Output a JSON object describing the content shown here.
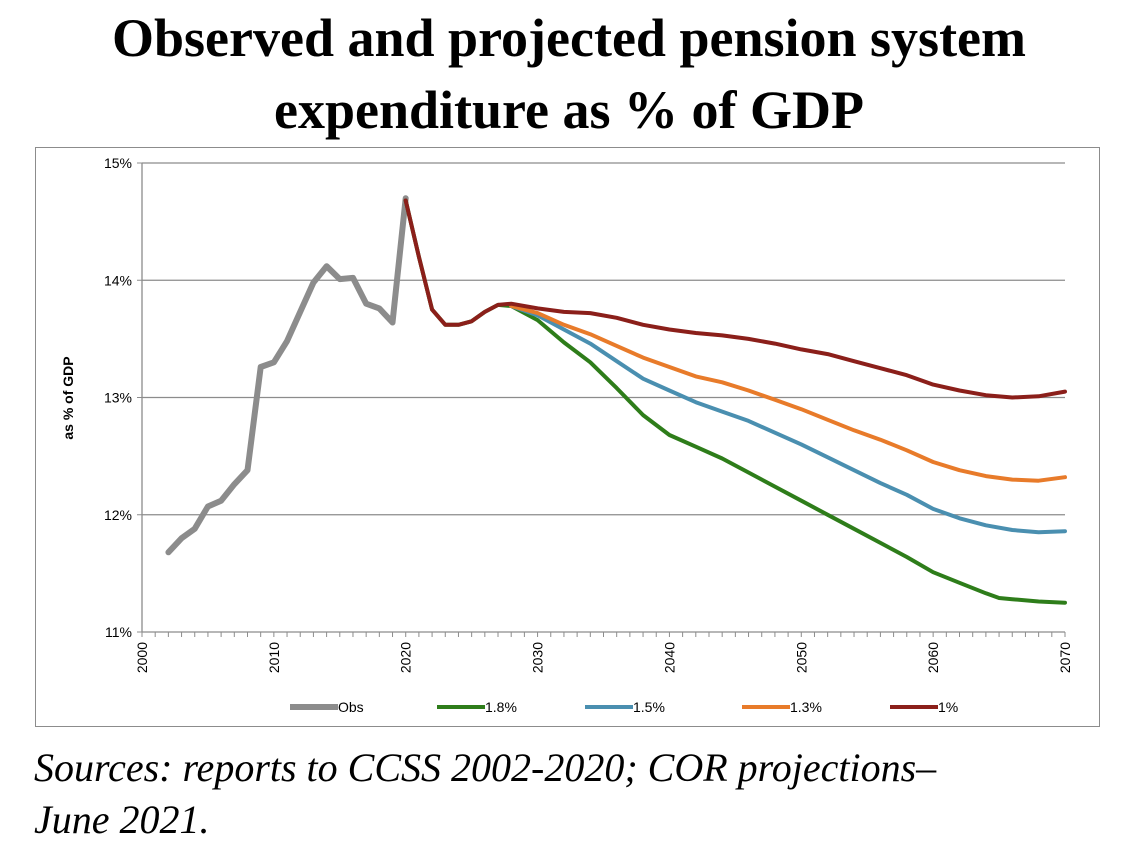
{
  "title_line1": "Observed and projected pension system",
  "title_line2": "expenditure as % of GDP",
  "source_line1": "Sources: reports to CCSS 2002-2020; COR projections–",
  "source_line2": "June 2021.",
  "chart_data": {
    "type": "line",
    "title": "Observed and projected pension system expenditure as % of GDP",
    "xlabel": "",
    "ylabel": "as % of GDP",
    "xlim": [
      2000,
      2070
    ],
    "ylim": [
      11,
      15
    ],
    "x_ticks": [
      "2000",
      "2010",
      "2020",
      "2030",
      "2040",
      "2050",
      "2060",
      "2070"
    ],
    "y_ticks": [
      "11%",
      "12%",
      "13%",
      "14%",
      "15%"
    ],
    "grid": "horizontal",
    "legend_position": "bottom",
    "series": [
      {
        "name": "Obs",
        "color": "#8c8c8c",
        "points": [
          [
            2002,
            11.68
          ],
          [
            2003,
            11.8
          ],
          [
            2004,
            11.88
          ],
          [
            2005,
            12.07
          ],
          [
            2006,
            12.12
          ],
          [
            2007,
            12.26
          ],
          [
            2008,
            12.38
          ],
          [
            2009,
            13.26
          ],
          [
            2010,
            13.3
          ],
          [
            2011,
            13.48
          ],
          [
            2012,
            13.73
          ],
          [
            2013,
            13.98
          ],
          [
            2014,
            14.12
          ],
          [
            2015,
            14.01
          ],
          [
            2016,
            14.02
          ],
          [
            2017,
            13.8
          ],
          [
            2018,
            13.76
          ],
          [
            2019,
            13.64
          ],
          [
            2020,
            14.7
          ]
        ]
      },
      {
        "name": "1.8%",
        "color": "#2e7d1a",
        "points": [
          [
            2020,
            14.68
          ],
          [
            2021,
            14.2
          ],
          [
            2022,
            13.75
          ],
          [
            2023,
            13.62
          ],
          [
            2024,
            13.62
          ],
          [
            2025,
            13.65
          ],
          [
            2026,
            13.73
          ],
          [
            2027,
            13.79
          ],
          [
            2028,
            13.78
          ],
          [
            2030,
            13.66
          ],
          [
            2032,
            13.47
          ],
          [
            2034,
            13.3
          ],
          [
            2036,
            13.08
          ],
          [
            2038,
            12.85
          ],
          [
            2040,
            12.68
          ],
          [
            2042,
            12.58
          ],
          [
            2044,
            12.48
          ],
          [
            2046,
            12.36
          ],
          [
            2048,
            12.24
          ],
          [
            2050,
            12.12
          ],
          [
            2052,
            12.0
          ],
          [
            2054,
            11.88
          ],
          [
            2056,
            11.76
          ],
          [
            2058,
            11.64
          ],
          [
            2060,
            11.51
          ],
          [
            2062,
            11.42
          ],
          [
            2064,
            11.33
          ],
          [
            2065,
            11.29
          ],
          [
            2066,
            11.28
          ],
          [
            2068,
            11.26
          ],
          [
            2070,
            11.25
          ]
        ]
      },
      {
        "name": "1.5%",
        "color": "#4a8fb0",
        "points": [
          [
            2028,
            13.78
          ],
          [
            2030,
            13.7
          ],
          [
            2032,
            13.58
          ],
          [
            2034,
            13.46
          ],
          [
            2036,
            13.31
          ],
          [
            2038,
            13.16
          ],
          [
            2040,
            13.06
          ],
          [
            2042,
            12.96
          ],
          [
            2044,
            12.88
          ],
          [
            2046,
            12.8
          ],
          [
            2048,
            12.7
          ],
          [
            2050,
            12.6
          ],
          [
            2052,
            12.49
          ],
          [
            2054,
            12.38
          ],
          [
            2056,
            12.27
          ],
          [
            2058,
            12.17
          ],
          [
            2060,
            12.05
          ],
          [
            2062,
            11.97
          ],
          [
            2064,
            11.91
          ],
          [
            2066,
            11.87
          ],
          [
            2068,
            11.85
          ],
          [
            2070,
            11.86
          ]
        ]
      },
      {
        "name": "1.3%",
        "color": "#e87b2a",
        "points": [
          [
            2028,
            13.78
          ],
          [
            2030,
            13.72
          ],
          [
            2032,
            13.62
          ],
          [
            2034,
            13.54
          ],
          [
            2036,
            13.44
          ],
          [
            2038,
            13.34
          ],
          [
            2040,
            13.26
          ],
          [
            2042,
            13.18
          ],
          [
            2044,
            13.13
          ],
          [
            2046,
            13.06
          ],
          [
            2048,
            12.98
          ],
          [
            2050,
            12.9
          ],
          [
            2052,
            12.81
          ],
          [
            2054,
            12.72
          ],
          [
            2056,
            12.64
          ],
          [
            2058,
            12.55
          ],
          [
            2060,
            12.45
          ],
          [
            2062,
            12.38
          ],
          [
            2064,
            12.33
          ],
          [
            2066,
            12.3
          ],
          [
            2068,
            12.29
          ],
          [
            2070,
            12.32
          ]
        ]
      },
      {
        "name": "1%",
        "color": "#8b1f1a",
        "points": [
          [
            2020,
            14.68
          ],
          [
            2021,
            14.2
          ],
          [
            2022,
            13.75
          ],
          [
            2023,
            13.62
          ],
          [
            2024,
            13.62
          ],
          [
            2025,
            13.65
          ],
          [
            2026,
            13.73
          ],
          [
            2027,
            13.79
          ],
          [
            2028,
            13.8
          ],
          [
            2030,
            13.76
          ],
          [
            2032,
            13.73
          ],
          [
            2034,
            13.72
          ],
          [
            2036,
            13.68
          ],
          [
            2038,
            13.62
          ],
          [
            2040,
            13.58
          ],
          [
            2042,
            13.55
          ],
          [
            2044,
            13.53
          ],
          [
            2046,
            13.5
          ],
          [
            2048,
            13.46
          ],
          [
            2050,
            13.41
          ],
          [
            2052,
            13.37
          ],
          [
            2054,
            13.31
          ],
          [
            2056,
            13.25
          ],
          [
            2058,
            13.19
          ],
          [
            2060,
            13.11
          ],
          [
            2062,
            13.06
          ],
          [
            2064,
            13.02
          ],
          [
            2066,
            13.0
          ],
          [
            2068,
            13.01
          ],
          [
            2070,
            13.05
          ]
        ]
      }
    ]
  }
}
